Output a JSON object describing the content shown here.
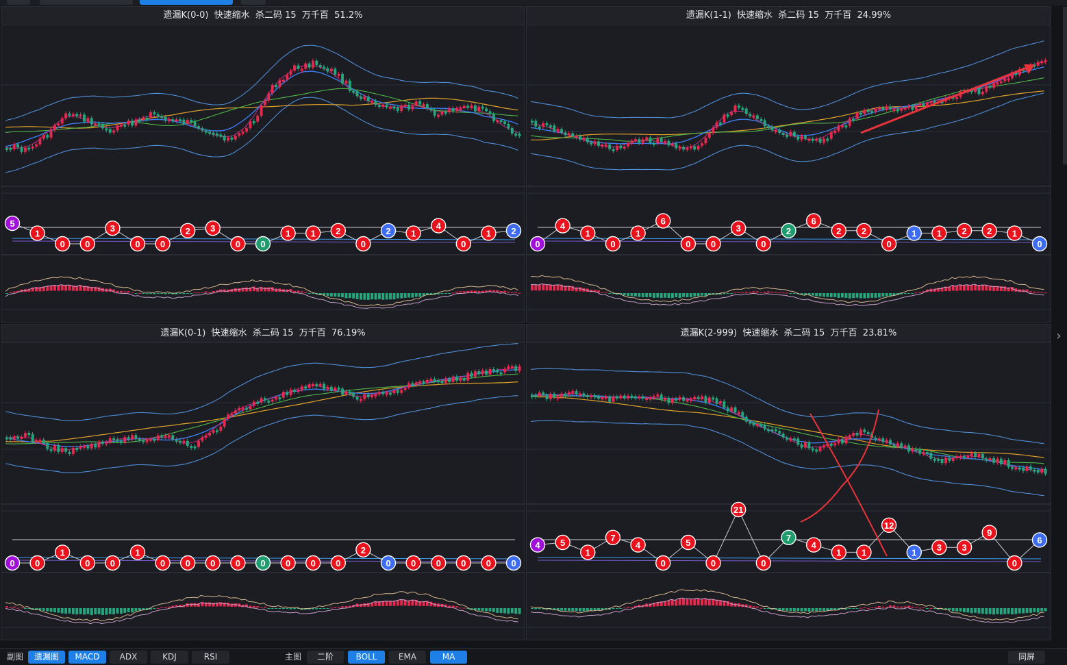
{
  "panels": [
    {
      "title": "遗漏K(0-0)  快速缩水  杀二码 15  万千百  51.2%",
      "nodes": [
        "5",
        "1",
        "0",
        "0",
        "3",
        "0",
        "0",
        "2",
        "3",
        "0",
        "0",
        "1",
        "1",
        "2",
        "0",
        "2",
        "1",
        "4",
        "0",
        "1",
        "2"
      ],
      "node_colors": [
        "purple",
        "red",
        "red",
        "red",
        "red",
        "red",
        "red",
        "red",
        "red",
        "red",
        "green",
        "red",
        "red",
        "red",
        "red",
        "blue",
        "red",
        "red",
        "red",
        "red",
        "blue"
      ]
    },
    {
      "title": "遗漏K(1-1)  快速缩水  杀二码 15  万千百  24.99%",
      "nodes": [
        "0",
        "4",
        "1",
        "0",
        "1",
        "6",
        "0",
        "0",
        "3",
        "0",
        "2",
        "6",
        "2",
        "2",
        "0",
        "1",
        "1",
        "2",
        "2",
        "1",
        "0"
      ],
      "node_colors": [
        "purple",
        "red",
        "red",
        "red",
        "red",
        "red",
        "red",
        "red",
        "red",
        "red",
        "green",
        "red",
        "red",
        "red",
        "red",
        "blue",
        "red",
        "red",
        "red",
        "red",
        "blue"
      ]
    },
    {
      "title": "遗漏K(0-1)  快速缩水  杀二码 15  万千百  76.19%",
      "nodes": [
        "0",
        "0",
        "1",
        "0",
        "0",
        "1",
        "0",
        "0",
        "0",
        "0",
        "0",
        "0",
        "0",
        "0",
        "2",
        "0",
        "0",
        "0",
        "0",
        "0",
        "0"
      ],
      "node_colors": [
        "purple",
        "red",
        "red",
        "red",
        "red",
        "red",
        "red",
        "red",
        "red",
        "red",
        "green",
        "red",
        "red",
        "red",
        "red",
        "blue",
        "red",
        "red",
        "red",
        "red",
        "blue"
      ]
    },
    {
      "title": "遗漏K(2-999)  快速缩水  杀二码 15  万千百  23.81%",
      "nodes": [
        "4",
        "5",
        "1",
        "7",
        "4",
        "0",
        "5",
        "0",
        "21",
        "0",
        "7",
        "4",
        "1",
        "1",
        "12",
        "1",
        "3",
        "3",
        "9",
        "0",
        "6"
      ],
      "node_colors": [
        "purple",
        "red",
        "red",
        "red",
        "red",
        "red",
        "red",
        "red",
        "red",
        "red",
        "green",
        "red",
        "red",
        "red",
        "red",
        "blue",
        "red",
        "red",
        "red",
        "red",
        "blue"
      ]
    }
  ],
  "colors": {
    "red": "#e8121c",
    "green": "#1f9d6e",
    "blue": "#3d6cf0",
    "purple": "#a010d8"
  },
  "bottom": {
    "sub_label": "副图",
    "sub_tabs": [
      {
        "label": "遗漏图",
        "active": true
      },
      {
        "label": "MACD",
        "active": true
      },
      {
        "label": "ADX",
        "active": false
      },
      {
        "label": "KDJ",
        "active": false
      },
      {
        "label": "RSI",
        "active": false
      }
    ],
    "main_label": "主图",
    "main_tabs": [
      {
        "label": "二阶",
        "active": false
      },
      {
        "label": "BOLL",
        "active": true
      },
      {
        "label": "EMA",
        "active": false
      },
      {
        "label": "MA",
        "active": true
      }
    ],
    "sync_label": "同屏"
  }
}
